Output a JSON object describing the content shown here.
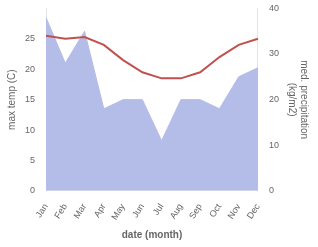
{
  "chart_data": {
    "type": "line",
    "categories": [
      "Jan",
      "Feb",
      "Mar",
      "Apr",
      "May",
      "Jun",
      "Jul",
      "Aug",
      "Sep",
      "Oct",
      "Nov",
      "Dec"
    ],
    "series": [
      {
        "type": "area",
        "color": "#b3bde8",
        "axis": "y2",
        "values": [
          38,
          28,
          35,
          18,
          20,
          20,
          11,
          20,
          20,
          18,
          25,
          27
        ]
      },
      {
        "type": "line",
        "color": "#c0514e",
        "values": [
          25.5,
          25.0,
          25.3,
          24.0,
          21.5,
          19.5,
          18.5,
          18.5,
          19.5,
          22.0,
          24.0,
          25.0
        ]
      }
    ],
    "xlabel": "date (month)",
    "ylabel": "max temp (C)",
    "y2label": "med. precipitation\n(kg/m2)",
    "ylim": [
      0,
      30
    ],
    "yticks": [
      0,
      5,
      10,
      15,
      20,
      25
    ],
    "y2lim": [
      0,
      40
    ],
    "y2ticks": [
      0,
      10,
      20,
      30,
      40
    ],
    "grid": false
  }
}
